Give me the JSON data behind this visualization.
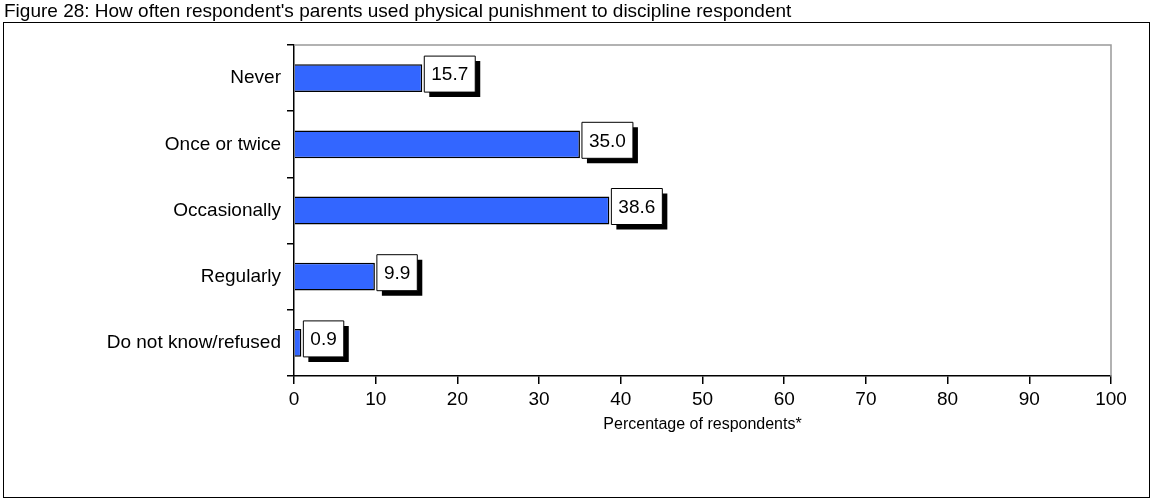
{
  "chart_data": {
    "type": "bar",
    "orientation": "horizontal",
    "title": "Figure 28:  How often respondent's parents used physical punishment to discipline respondent",
    "xlabel": "Percentage of respondents*",
    "categories": [
      "Never",
      "Once or twice",
      "Occasionally",
      "Regularly",
      "Do not know/refused"
    ],
    "values": [
      15.7,
      35.0,
      38.6,
      9.9,
      0.9
    ],
    "color": "#3366ff",
    "xlim": [
      0,
      100
    ],
    "xticks": [
      0,
      10,
      20,
      30,
      40,
      50,
      60,
      70,
      80,
      90,
      100
    ],
    "value_labels": [
      "15.7",
      "35.0",
      "38.6",
      "9.9",
      "0.9"
    ],
    "grid": false,
    "legend": false
  }
}
